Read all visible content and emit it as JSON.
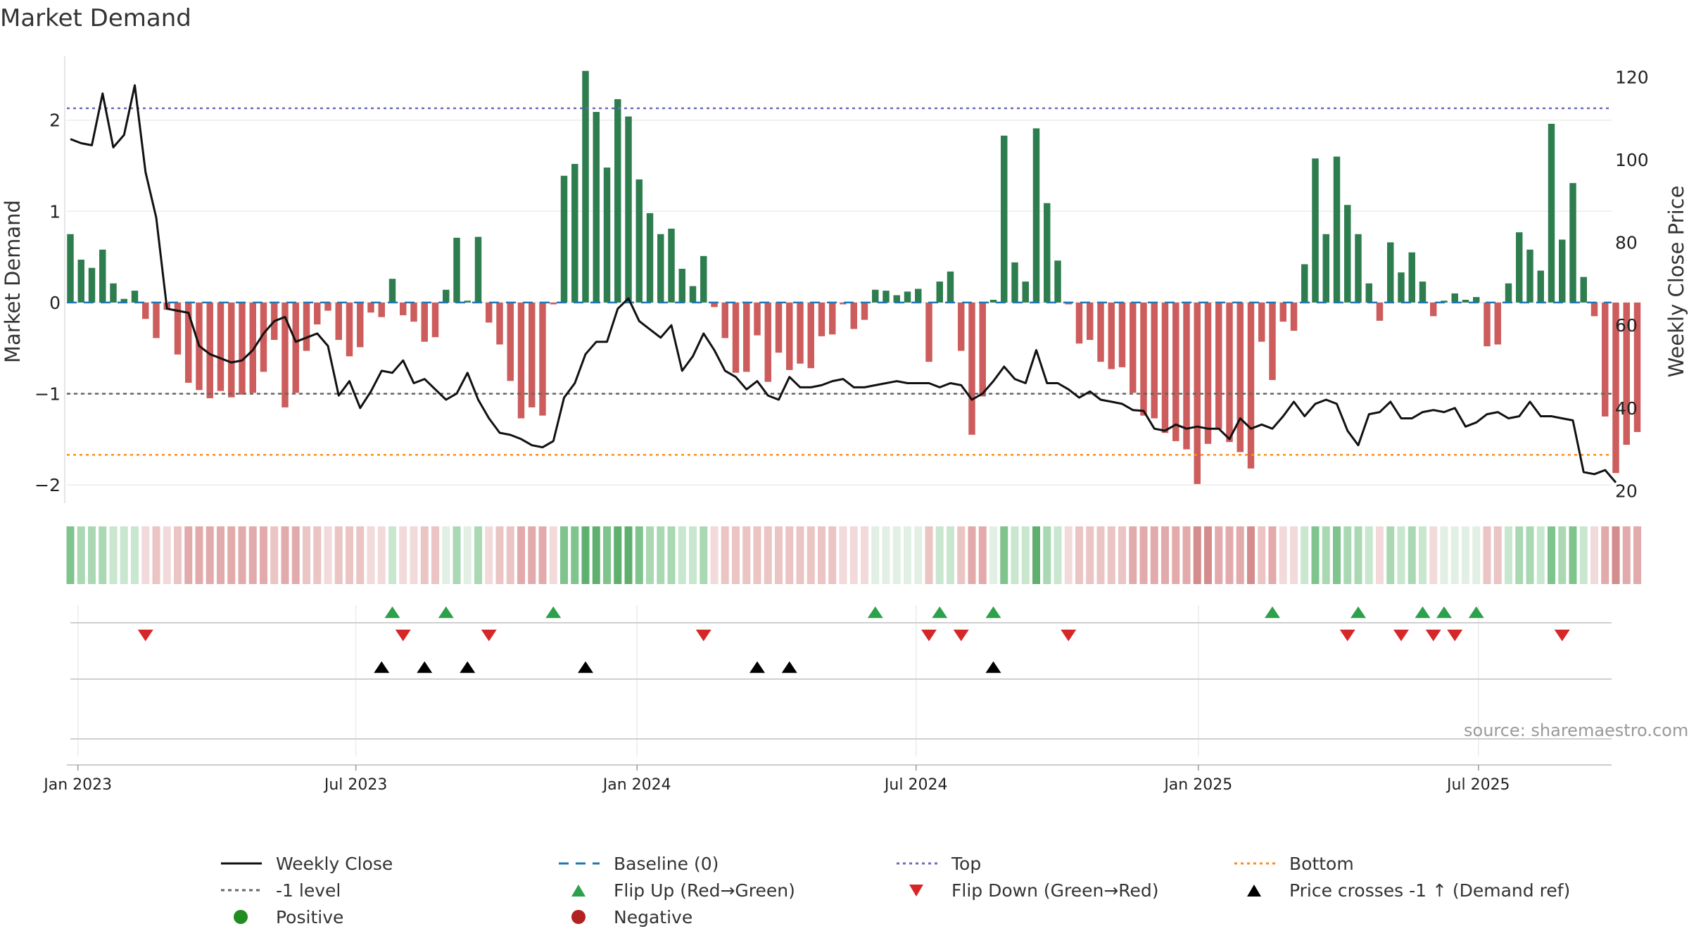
{
  "title": "Market Demand",
  "source_text": "source: sharemaestro.com",
  "colors": {
    "positive_bar": "#2e7d4f",
    "negative_bar": "#cd5c5c",
    "price_line": "#111111",
    "baseline": "#1f77b4",
    "top_line": "#6c6cbf",
    "bottom_line": "#ff8c1a",
    "level_line": "#666666",
    "flip_up": "#2ca04a",
    "flip_down": "#d62728",
    "cross": "#000000",
    "positive_dot": "#228b22",
    "negative_dot": "#b22222"
  },
  "chart_data": {
    "type": "bar+line",
    "title": "Market Demand",
    "ylabel": "Market Demand",
    "y2label": "Weekly Close Price",
    "ylim": [
      -2.2,
      2.7
    ],
    "y2lim": [
      17,
      125
    ],
    "yticks": [
      -2,
      -1,
      0,
      1,
      2
    ],
    "y2ticks": [
      20,
      40,
      60,
      80,
      100,
      120
    ],
    "x_start_week": -1.4,
    "x_end_week": 143,
    "xticks": [
      {
        "label": "Jan 2023",
        "week": 0.7
      },
      {
        "label": "Jul 2023",
        "week": 26.6
      },
      {
        "label": "Jan 2024",
        "week": 52.8
      },
      {
        "label": "Jul 2024",
        "week": 78.8
      },
      {
        "label": "Jan 2025",
        "week": 105.1
      },
      {
        "label": "Jul 2025",
        "week": 131.2
      }
    ],
    "top_level": 2.13,
    "bottom_level": -1.67,
    "minus_one_level": -1.0,
    "baseline": 0,
    "demand": [
      0.75,
      0.47,
      0.38,
      0.58,
      0.21,
      0.04,
      0.13,
      -0.18,
      -0.39,
      -0.08,
      -0.57,
      -0.88,
      -0.96,
      -1.05,
      -0.97,
      -1.04,
      -1.01,
      -0.99,
      -0.76,
      -0.41,
      -1.15,
      -0.99,
      -0.53,
      -0.24,
      -0.09,
      -0.41,
      -0.59,
      -0.49,
      -0.11,
      -0.16,
      0.26,
      -0.14,
      -0.21,
      -0.43,
      -0.38,
      0.14,
      0.71,
      0.02,
      0.72,
      -0.22,
      -0.46,
      -0.86,
      -1.27,
      -1.15,
      -1.24,
      -0.02,
      1.39,
      1.52,
      2.54,
      2.09,
      1.48,
      2.23,
      2.04,
      1.35,
      0.98,
      0.75,
      0.81,
      0.37,
      0.18,
      0.51,
      -0.05,
      -0.39,
      -0.77,
      -0.76,
      -0.36,
      -0.87,
      -0.55,
      -0.74,
      -0.67,
      -0.72,
      -0.37,
      -0.35,
      -0.02,
      -0.29,
      -0.19,
      0.14,
      0.13,
      0.08,
      0.12,
      0.15,
      -0.65,
      0.23,
      0.34,
      -0.53,
      -1.45,
      -1.03,
      0.03,
      1.83,
      0.44,
      0.23,
      1.91,
      1.09,
      0.46,
      -0.02,
      -0.45,
      -0.41,
      -0.65,
      -0.73,
      -0.71,
      -0.99,
      -1.24,
      -1.27,
      -1.43,
      -1.52,
      -1.61,
      -1.99,
      -1.55,
      -1.39,
      -1.53,
      -1.64,
      -1.82,
      -0.43,
      -0.85,
      -0.21,
      -0.31,
      0.42,
      1.58,
      0.75,
      1.6,
      1.07,
      0.75,
      0.21,
      -0.2,
      0.66,
      0.33,
      0.55,
      0.23,
      -0.15,
      0.02,
      0.1,
      0.03,
      0.06,
      -0.48,
      -0.46,
      0.21,
      0.77,
      0.58,
      0.35,
      1.96,
      0.69,
      1.31,
      0.28,
      -0.15,
      -1.25,
      -1.87,
      -1.56,
      -1.42
    ],
    "price": [
      105,
      104,
      103.5,
      116,
      103,
      106,
      118,
      97,
      86,
      64,
      63.5,
      63,
      55,
      53,
      52,
      51,
      51.5,
      54,
      58,
      61,
      62,
      56,
      57,
      58,
      55,
      43,
      46.5,
      40,
      44,
      49,
      48.5,
      51.5,
      46,
      47,
      44.5,
      42,
      43.5,
      48.5,
      42,
      37.5,
      34,
      33.5,
      32.5,
      31,
      30.5,
      32,
      42.5,
      46,
      53,
      56,
      56,
      64,
      66.5,
      61,
      59,
      57,
      60,
      49,
      52.5,
      58,
      54,
      49,
      47.5,
      44.5,
      46.5,
      43,
      42,
      47.5,
      45,
      45,
      45.5,
      46.5,
      47,
      45,
      45,
      45.5,
      46,
      46.5,
      46,
      46,
      46,
      45,
      46,
      45.5,
      42,
      43.5,
      46.5,
      50,
      47,
      46,
      54,
      46,
      46,
      44.5,
      42.5,
      44,
      42,
      41.5,
      41,
      39.5,
      39.3,
      35,
      34.5,
      36,
      35,
      35.5,
      35,
      35,
      32.5,
      37.5,
      35,
      36,
      35,
      38,
      41.5,
      38,
      41,
      42,
      41,
      34.5,
      31,
      38.5,
      39,
      41.5,
      37.5,
      37.5,
      39,
      39.5,
      39,
      40,
      35.5,
      36.5,
      38.5,
      39,
      37.5,
      38,
      41.5,
      38,
      38,
      37.5,
      37,
      24.5,
      24,
      25,
      22
    ],
    "heat_levels": [
      4,
      3,
      3,
      3,
      2,
      2,
      2,
      -1,
      -2,
      -1,
      -2,
      -3,
      -3,
      -3,
      -3,
      -3,
      -3,
      -3,
      -3,
      -2,
      -3,
      -3,
      -2,
      -2,
      -1,
      -2,
      -2,
      -2,
      -1,
      -1,
      2,
      -1,
      -1,
      -2,
      -2,
      1,
      3,
      1,
      3,
      -1,
      -2,
      -2,
      -3,
      -3,
      -3,
      -1,
      4,
      4,
      5,
      5,
      4,
      5,
      5,
      4,
      3,
      3,
      3,
      2,
      2,
      3,
      -1,
      -2,
      -2,
      -2,
      -2,
      -2,
      -2,
      -2,
      -2,
      -2,
      -2,
      -2,
      -1,
      -1,
      -1,
      1,
      1,
      1,
      1,
      1,
      -2,
      2,
      2,
      -2,
      -3,
      -3,
      1,
      4,
      2,
      2,
      5,
      3,
      2,
      -1,
      -2,
      -2,
      -2,
      -2,
      -2,
      -3,
      -3,
      -3,
      -3,
      -3,
      -3,
      -4,
      -4,
      -3,
      -3,
      -3,
      -4,
      -2,
      -3,
      -1,
      -1,
      2,
      4,
      3,
      4,
      3,
      3,
      2,
      -1,
      3,
      2,
      3,
      2,
      -1,
      1,
      1,
      1,
      1,
      -2,
      -2,
      2,
      3,
      3,
      2,
      4,
      3,
      4,
      2,
      -1,
      -3,
      -4,
      -3,
      -3
    ],
    "flip_up_weeks": [
      30,
      35,
      45,
      75,
      81,
      86,
      112,
      120,
      126,
      128,
      131
    ],
    "flip_down_weeks": [
      7,
      31,
      39,
      59,
      80,
      83,
      93,
      119,
      124,
      127,
      129,
      139
    ],
    "cross_weeks": [
      29,
      33,
      37,
      48,
      64,
      67,
      86
    ]
  },
  "legend": [
    {
      "key": "weekly_close",
      "label": "Weekly Close"
    },
    {
      "key": "baseline",
      "label": "Baseline (0)"
    },
    {
      "key": "top",
      "label": "Top"
    },
    {
      "key": "bottom",
      "label": "Bottom"
    },
    {
      "key": "minus_one",
      "label": "-1 level"
    },
    {
      "key": "flip_up",
      "label": "Flip Up (Red→Green)"
    },
    {
      "key": "flip_down",
      "label": "Flip Down (Green→Red)"
    },
    {
      "key": "cross",
      "label": "Price crosses -1 ↑ (Demand ref)"
    },
    {
      "key": "positive",
      "label": "Positive"
    },
    {
      "key": "negative",
      "label": "Negative"
    }
  ]
}
